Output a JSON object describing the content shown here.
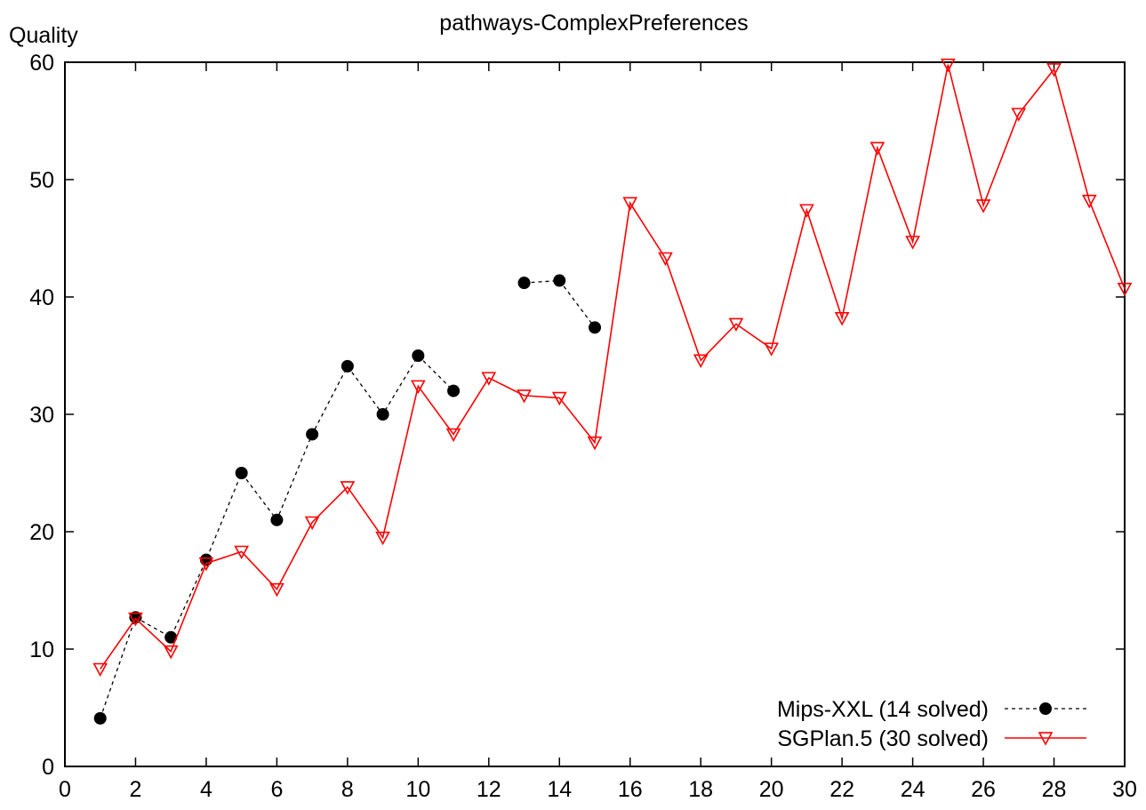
{
  "chart_data": {
    "type": "line",
    "title": "pathways-ComplexPreferences",
    "xlabel": "",
    "ylabel": "Quality",
    "xlim": [
      0,
      30
    ],
    "ylim": [
      0,
      60
    ],
    "x_ticks": [
      0,
      2,
      4,
      6,
      8,
      10,
      12,
      14,
      16,
      18,
      20,
      22,
      24,
      26,
      28,
      30
    ],
    "y_ticks": [
      0,
      10,
      20,
      30,
      40,
      50,
      60
    ],
    "grid": false,
    "legend_position": "bottom-right",
    "series": [
      {
        "name": "Mips-XXL (14  solved)",
        "color": "#000000",
        "line_style": "dashed",
        "marker": "filled-circle",
        "points": [
          [
            1,
            4.1
          ],
          [
            2,
            12.7
          ],
          [
            3,
            11.0
          ],
          [
            4,
            17.6
          ],
          [
            5,
            25.0
          ],
          [
            6,
            21.0
          ],
          [
            7,
            28.3
          ],
          [
            8,
            34.1
          ],
          [
            9,
            30.0
          ],
          [
            10,
            35.0
          ],
          [
            11,
            32.0
          ],
          null,
          [
            13,
            41.2
          ],
          [
            14,
            41.4
          ],
          [
            15,
            37.4
          ]
        ]
      },
      {
        "name": "SGPlan.5 (30  solved)",
        "color": "#ff0000",
        "line_style": "solid",
        "marker": "open-down-triangle",
        "points": [
          [
            1,
            8.3
          ],
          [
            2,
            12.6
          ],
          [
            3,
            9.8
          ],
          [
            4,
            17.3
          ],
          [
            5,
            18.3
          ],
          [
            6,
            15.1
          ],
          [
            7,
            20.8
          ],
          [
            8,
            23.8
          ],
          [
            9,
            19.5
          ],
          [
            10,
            32.4
          ],
          [
            11,
            28.3
          ],
          [
            12,
            33.1
          ],
          [
            13,
            31.6
          ],
          [
            14,
            31.4
          ],
          [
            15,
            27.6
          ],
          [
            16,
            48.0
          ],
          [
            17,
            43.3
          ],
          [
            18,
            34.6
          ],
          [
            19,
            37.7
          ],
          [
            20,
            35.6
          ],
          [
            21,
            47.4
          ],
          [
            22,
            38.2
          ],
          [
            23,
            52.7
          ],
          [
            24,
            44.7
          ],
          [
            25,
            59.8
          ],
          [
            26,
            47.8
          ],
          [
            27,
            55.6
          ],
          [
            28,
            59.4
          ],
          [
            29,
            48.2
          ],
          [
            30,
            40.7
          ]
        ]
      }
    ]
  }
}
